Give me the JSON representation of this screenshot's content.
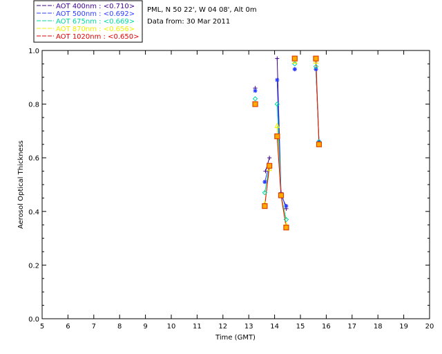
{
  "header": {
    "site": "PML, N 50 22', W 04 08', Alt 0m",
    "date": "Data from: 30 Mar 2011"
  },
  "chart_data": {
    "type": "line",
    "title": "",
    "xlabel": "Time (GMT)",
    "ylabel": "Aerosol Optical Thickness",
    "xlim": [
      5,
      20
    ],
    "ylim": [
      0.0,
      1.0
    ],
    "xticks": [
      "5",
      "6",
      "7",
      "8",
      "9",
      "10",
      "11",
      "12",
      "13",
      "14",
      "15",
      "16",
      "17",
      "18",
      "19",
      "20"
    ],
    "yticks": [
      "0.0",
      "0.2",
      "0.4",
      "0.6",
      "0.8",
      "1.0"
    ],
    "grid": false,
    "legend_position": "top-left",
    "series": [
      {
        "name": "AOT  400nm : <0.710>",
        "color": "#3c0090",
        "marker": "plus",
        "x": [
          13.25,
          13.65,
          13.8,
          14.1,
          14.25,
          14.45,
          14.78,
          15.6,
          15.72
        ],
        "y": [
          0.86,
          0.55,
          0.6,
          0.97,
          0.47,
          0.41,
          0.93,
          0.93,
          0.66
        ]
      },
      {
        "name": "AOT  500nm : <0.692>",
        "color": "#2a3cff",
        "marker": "asterisk",
        "x": [
          13.25,
          13.62,
          13.78,
          14.1,
          14.25,
          14.45,
          14.78,
          15.6,
          15.72
        ],
        "y": [
          0.85,
          0.51,
          0.57,
          0.89,
          0.46,
          0.42,
          0.93,
          0.93,
          0.66
        ]
      },
      {
        "name": "AOT  675nm : <0.669>",
        "color": "#00d8a0",
        "marker": "diamond",
        "x": [
          13.25,
          13.62,
          13.8,
          14.1,
          14.25,
          14.45,
          14.78,
          15.6,
          15.72
        ],
        "y": [
          0.82,
          0.47,
          0.57,
          0.8,
          0.46,
          0.37,
          0.95,
          0.94,
          0.66
        ]
      },
      {
        "name": "AOT  870nm : <0.656>",
        "color": "#f0f000",
        "marker": "triangle",
        "x": [
          13.25,
          13.62,
          13.8,
          14.1,
          14.25,
          14.45,
          14.78,
          15.6,
          15.72
        ],
        "y": [
          0.8,
          0.43,
          0.56,
          0.72,
          0.46,
          0.35,
          0.96,
          0.96,
          0.65
        ]
      },
      {
        "name": "AOT 1020nm : <0.650>",
        "color": "#e00000",
        "marker": "square",
        "x": [
          13.25,
          13.62,
          13.8,
          14.1,
          14.25,
          14.45,
          14.78,
          15.6,
          15.72
        ],
        "y": [
          0.8,
          0.42,
          0.57,
          0.68,
          0.46,
          0.34,
          0.97,
          0.97,
          0.65
        ]
      }
    ]
  },
  "colors": {
    "square_marker_fill": "#ffaa00",
    "square_marker_edge": "#e04000",
    "diamond_marker_edge": "#00d8a0",
    "legend_border": "#000000"
  }
}
